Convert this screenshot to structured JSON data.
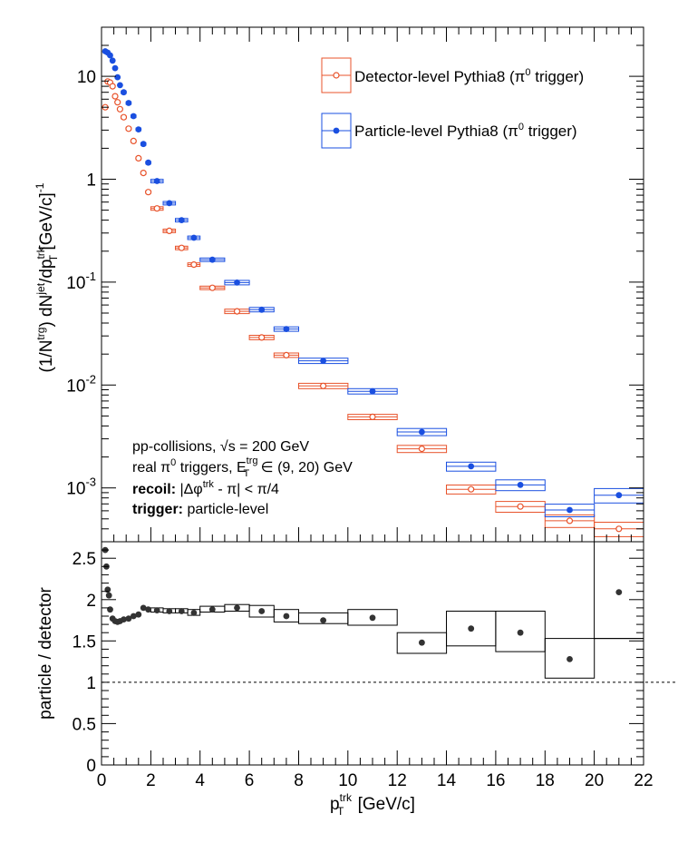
{
  "chart_data": [
    {
      "panel": "top",
      "type": "scatter",
      "ylabel": "(1/N^trg) dN^jet/dp_T^trk [GeV/c]^-1",
      "yscale": "log",
      "xlim": [
        0,
        22
      ],
      "ylim": [
        0.0003,
        30
      ],
      "yticks": [
        {
          "v": 10,
          "label": "10"
        },
        {
          "v": 1,
          "label": "1"
        },
        {
          "v": 0.1,
          "label": "10^-1"
        },
        {
          "v": 0.01,
          "label": "10^-2"
        },
        {
          "v": 0.001,
          "label": "10^-3"
        }
      ],
      "legend": {
        "placement": "top-right",
        "entries": [
          {
            "label": "Detector-level Pythia8 (π^0 trigger)",
            "color": "#e8532b",
            "marker": "open-circle"
          },
          {
            "label": "Particle-level Pythia8 (π^0 trigger)",
            "color": "#1a4fe0",
            "marker": "filled-circle"
          }
        ]
      },
      "annotation": {
        "line1": "pp-collisions, √s = 200 GeV",
        "line2_pre": "real π",
        "line2_sup": "0",
        "line2_mid": " triggers, E",
        "line2_sub": "T",
        "line2_sup2": "trg",
        "line2_post": " ∈ (9, 20) GeV",
        "line3_bold": "recoil:",
        "line3_rest": " |Δφ",
        "line3_sup": "trk",
        "line3_post": " - π| < π/4",
        "line4_bold": "trigger:",
        "line4_rest": " particle-level"
      },
      "series": [
        {
          "name": "Detector-level Pythia8 (π^0 trigger)",
          "color": "#e8532b",
          "marker": "open-circle",
          "points": [
            {
              "x": 0.15,
              "xerr": 0.05,
              "y": 5.0,
              "syst": 0.03
            },
            {
              "x": 0.25,
              "xerr": 0.05,
              "y": 8.9,
              "syst": 0.03
            },
            {
              "x": 0.35,
              "xerr": 0.05,
              "y": 8.7,
              "syst": 0.03
            },
            {
              "x": 0.45,
              "xerr": 0.05,
              "y": 8.0,
              "syst": 0.03
            },
            {
              "x": 0.55,
              "xerr": 0.05,
              "y": 6.4,
              "syst": 0.03
            },
            {
              "x": 0.65,
              "xerr": 0.05,
              "y": 5.6,
              "syst": 0.03
            },
            {
              "x": 0.75,
              "xerr": 0.05,
              "y": 4.8,
              "syst": 0.03
            },
            {
              "x": 0.9,
              "xerr": 0.1,
              "y": 4.0,
              "syst": 0.03
            },
            {
              "x": 1.1,
              "xerr": 0.1,
              "y": 3.1,
              "syst": 0.03
            },
            {
              "x": 1.3,
              "xerr": 0.1,
              "y": 2.35,
              "syst": 0.03
            },
            {
              "x": 1.5,
              "xerr": 0.1,
              "y": 1.6,
              "syst": 0.03
            },
            {
              "x": 1.7,
              "xerr": 0.1,
              "y": 1.15,
              "syst": 0.03
            },
            {
              "x": 1.9,
              "xerr": 0.1,
              "y": 0.75,
              "syst": 0.03
            },
            {
              "x": 2.25,
              "xerr": 0.25,
              "y": 0.52,
              "syst": 0.04
            },
            {
              "x": 2.75,
              "xerr": 0.25,
              "y": 0.315,
              "syst": 0.04
            },
            {
              "x": 3.25,
              "xerr": 0.25,
              "y": 0.215,
              "syst": 0.04
            },
            {
              "x": 3.75,
              "xerr": 0.25,
              "y": 0.148,
              "syst": 0.04
            },
            {
              "x": 4.5,
              "xerr": 0.5,
              "y": 0.088,
              "syst": 0.04
            },
            {
              "x": 5.5,
              "xerr": 0.5,
              "y": 0.052,
              "syst": 0.05
            },
            {
              "x": 6.5,
              "xerr": 0.5,
              "y": 0.029,
              "syst": 0.05
            },
            {
              "x": 7.5,
              "xerr": 0.5,
              "y": 0.0195,
              "syst": 0.05
            },
            {
              "x": 9,
              "xerr": 1,
              "y": 0.0098,
              "syst": 0.06
            },
            {
              "x": 11,
              "xerr": 1,
              "y": 0.0049,
              "syst": 0.06
            },
            {
              "x": 13,
              "xerr": 1,
              "y": 0.0024,
              "syst": 0.08
            },
            {
              "x": 15,
              "xerr": 1,
              "y": 0.00097,
              "syst": 0.1
            },
            {
              "x": 17,
              "xerr": 1,
              "y": 0.00066,
              "syst": 0.12
            },
            {
              "x": 19,
              "xerr": 1,
              "y": 0.00048,
              "syst": 0.14
            },
            {
              "x": 21,
              "xerr": 1,
              "y": 0.0004,
              "syst": 0.16
            }
          ]
        },
        {
          "name": "Particle-level Pythia8 (π^0 trigger)",
          "color": "#1a4fe0",
          "marker": "filled-circle",
          "points": [
            {
              "x": 0.15,
              "xerr": 0.05,
              "y": 17.5,
              "syst": 0.03
            },
            {
              "x": 0.25,
              "xerr": 0.05,
              "y": 17.0,
              "syst": 0.03
            },
            {
              "x": 0.35,
              "xerr": 0.05,
              "y": 16.0,
              "syst": 0.03
            },
            {
              "x": 0.45,
              "xerr": 0.05,
              "y": 14.2,
              "syst": 0.03
            },
            {
              "x": 0.55,
              "xerr": 0.05,
              "y": 12.0,
              "syst": 0.03
            },
            {
              "x": 0.65,
              "xerr": 0.05,
              "y": 9.8,
              "syst": 0.03
            },
            {
              "x": 0.75,
              "xerr": 0.05,
              "y": 8.2,
              "syst": 0.03
            },
            {
              "x": 0.9,
              "xerr": 0.1,
              "y": 7.0,
              "syst": 0.03
            },
            {
              "x": 1.1,
              "xerr": 0.1,
              "y": 5.5,
              "syst": 0.03
            },
            {
              "x": 1.3,
              "xerr": 0.1,
              "y": 4.1,
              "syst": 0.03
            },
            {
              "x": 1.5,
              "xerr": 0.1,
              "y": 3.05,
              "syst": 0.03
            },
            {
              "x": 1.7,
              "xerr": 0.1,
              "y": 2.2,
              "syst": 0.03
            },
            {
              "x": 1.9,
              "xerr": 0.1,
              "y": 1.45,
              "syst": 0.03
            },
            {
              "x": 2.25,
              "xerr": 0.25,
              "y": 0.96,
              "syst": 0.04
            },
            {
              "x": 2.75,
              "xerr": 0.25,
              "y": 0.585,
              "syst": 0.04
            },
            {
              "x": 3.25,
              "xerr": 0.25,
              "y": 0.4,
              "syst": 0.04
            },
            {
              "x": 3.75,
              "xerr": 0.25,
              "y": 0.27,
              "syst": 0.04
            },
            {
              "x": 4.5,
              "xerr": 0.5,
              "y": 0.165,
              "syst": 0.04
            },
            {
              "x": 5.5,
              "xerr": 0.5,
              "y": 0.099,
              "syst": 0.05
            },
            {
              "x": 6.5,
              "xerr": 0.5,
              "y": 0.054,
              "syst": 0.05
            },
            {
              "x": 7.5,
              "xerr": 0.5,
              "y": 0.035,
              "syst": 0.05
            },
            {
              "x": 9,
              "xerr": 1,
              "y": 0.0172,
              "syst": 0.06
            },
            {
              "x": 11,
              "xerr": 1,
              "y": 0.0087,
              "syst": 0.06
            },
            {
              "x": 13,
              "xerr": 1,
              "y": 0.0035,
              "syst": 0.08
            },
            {
              "x": 15,
              "xerr": 1,
              "y": 0.00162,
              "syst": 0.1
            },
            {
              "x": 17,
              "xerr": 1,
              "y": 0.00107,
              "syst": 0.12
            },
            {
              "x": 19,
              "xerr": 1,
              "y": 0.00061,
              "syst": 0.14
            },
            {
              "x": 21,
              "xerr": 1,
              "y": 0.00085,
              "syst": 0.16
            }
          ]
        }
      ]
    },
    {
      "panel": "bottom",
      "type": "scatter",
      "xlabel": "p_T^trk [GeV/c]",
      "ylabel": "particle / detector",
      "xlim": [
        0,
        22
      ],
      "ylim": [
        0,
        2.7
      ],
      "xticks": [
        0,
        2,
        4,
        6,
        8,
        10,
        12,
        14,
        16,
        18,
        20,
        22
      ],
      "yticks": [
        {
          "v": 0,
          "label": "0"
        },
        {
          "v": 0.5,
          "label": "0.5"
        },
        {
          "v": 1,
          "label": "1"
        },
        {
          "v": 1.5,
          "label": "1.5"
        },
        {
          "v": 2,
          "label": "2"
        },
        {
          "v": 2.5,
          "label": "2.5"
        }
      ],
      "reference_line": 1,
      "color": "#333333",
      "points": [
        {
          "x": 0.15,
          "xerr": 0.05,
          "y": 2.6,
          "sys_lo": 2.6,
          "sys_hi": 2.6
        },
        {
          "x": 0.2,
          "xerr": 0.05,
          "y": 2.4,
          "sys_lo": 2.4,
          "sys_hi": 2.4
        },
        {
          "x": 0.25,
          "xerr": 0.05,
          "y": 2.12,
          "sys_lo": 2.12,
          "sys_hi": 2.12
        },
        {
          "x": 0.3,
          "xerr": 0.05,
          "y": 2.05,
          "sys_lo": 2.05,
          "sys_hi": 2.05
        },
        {
          "x": 0.35,
          "xerr": 0.05,
          "y": 1.88,
          "sys_lo": 1.88,
          "sys_hi": 1.88
        },
        {
          "x": 0.45,
          "xerr": 0.05,
          "y": 1.77,
          "sys_lo": 1.77,
          "sys_hi": 1.77
        },
        {
          "x": 0.55,
          "xerr": 0.05,
          "y": 1.74,
          "sys_lo": 1.74,
          "sys_hi": 1.74
        },
        {
          "x": 0.65,
          "xerr": 0.05,
          "y": 1.73,
          "sys_lo": 1.73,
          "sys_hi": 1.73
        },
        {
          "x": 0.75,
          "xerr": 0.05,
          "y": 1.74,
          "sys_lo": 1.74,
          "sys_hi": 1.74
        },
        {
          "x": 0.9,
          "xerr": 0.1,
          "y": 1.76,
          "sys_lo": 1.76,
          "sys_hi": 1.76
        },
        {
          "x": 1.1,
          "xerr": 0.1,
          "y": 1.77,
          "sys_lo": 1.77,
          "sys_hi": 1.77
        },
        {
          "x": 1.3,
          "xerr": 0.1,
          "y": 1.8,
          "sys_lo": 1.8,
          "sys_hi": 1.8
        },
        {
          "x": 1.5,
          "xerr": 0.1,
          "y": 1.82,
          "sys_lo": 1.82,
          "sys_hi": 1.82
        },
        {
          "x": 1.7,
          "xerr": 0.1,
          "y": 1.9,
          "sys_lo": 1.9,
          "sys_hi": 1.9
        },
        {
          "x": 1.9,
          "xerr": 0.1,
          "y": 1.88,
          "sys_lo": 1.88,
          "sys_hi": 1.88
        },
        {
          "x": 2.25,
          "xerr": 0.25,
          "y": 1.87,
          "sys_lo": 1.85,
          "sys_hi": 1.9
        },
        {
          "x": 2.75,
          "xerr": 0.25,
          "y": 1.86,
          "sys_lo": 1.84,
          "sys_hi": 1.89
        },
        {
          "x": 3.25,
          "xerr": 0.25,
          "y": 1.86,
          "sys_lo": 1.84,
          "sys_hi": 1.89
        },
        {
          "x": 3.75,
          "xerr": 0.25,
          "y": 1.84,
          "sys_lo": 1.81,
          "sys_hi": 1.88
        },
        {
          "x": 4.5,
          "xerr": 0.5,
          "y": 1.88,
          "sys_lo": 1.85,
          "sys_hi": 1.92
        },
        {
          "x": 5.5,
          "xerr": 0.5,
          "y": 1.9,
          "sys_lo": 1.86,
          "sys_hi": 1.94
        },
        {
          "x": 6.5,
          "xerr": 0.5,
          "y": 1.86,
          "sys_lo": 1.79,
          "sys_hi": 1.93
        },
        {
          "x": 7.5,
          "xerr": 0.5,
          "y": 1.8,
          "sys_lo": 1.73,
          "sys_hi": 1.88
        },
        {
          "x": 9,
          "xerr": 1,
          "y": 1.75,
          "sys_lo": 1.71,
          "sys_hi": 1.84
        },
        {
          "x": 11,
          "xerr": 1,
          "y": 1.78,
          "sys_lo": 1.69,
          "sys_hi": 1.88
        },
        {
          "x": 13,
          "xerr": 1,
          "y": 1.48,
          "sys_lo": 1.35,
          "sys_hi": 1.6
        },
        {
          "x": 15,
          "xerr": 1,
          "y": 1.65,
          "sys_lo": 1.44,
          "sys_hi": 1.86
        },
        {
          "x": 17,
          "xerr": 1,
          "y": 1.6,
          "sys_lo": 1.37,
          "sys_hi": 1.86
        },
        {
          "x": 19,
          "xerr": 1,
          "y": 1.28,
          "sys_lo": 1.05,
          "sys_hi": 1.53
        },
        {
          "x": 21,
          "xerr": 1,
          "y": 2.09,
          "sys_lo": 1.53,
          "sys_hi": 2.7
        }
      ]
    }
  ]
}
